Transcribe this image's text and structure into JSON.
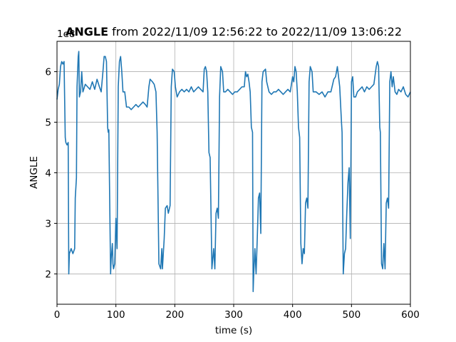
{
  "chart_data": {
    "type": "line",
    "title": {
      "bold_part": "ANGLE",
      "rest": " from 2022/11/09 12:56:22 to 2022/11/09 13:06:22"
    },
    "xlabel": "time (s)",
    "ylabel": "ANGLE",
    "y_offset_label": "1e8",
    "xlim": [
      0,
      600
    ],
    "ylim": [
      1.4,
      6.6
    ],
    "x_ticks": [
      0,
      100,
      200,
      300,
      400,
      500,
      600
    ],
    "y_ticks": [
      2,
      3,
      4,
      5,
      6
    ],
    "grid": true,
    "series": [
      {
        "color": "#1f77b4",
        "points": [
          [
            0,
            5.45
          ],
          [
            2,
            5.65
          ],
          [
            4,
            5.75
          ],
          [
            6,
            6.1
          ],
          [
            8,
            6.2
          ],
          [
            10,
            6.15
          ],
          [
            12,
            6.2
          ],
          [
            14,
            4.7
          ],
          [
            15,
            4.6
          ],
          [
            17,
            4.55
          ],
          [
            19,
            4.6
          ],
          [
            20,
            2.0
          ],
          [
            21,
            2.4
          ],
          [
            24,
            2.5
          ],
          [
            27,
            2.4
          ],
          [
            30,
            2.5
          ],
          [
            31,
            3.5
          ],
          [
            33,
            3.9
          ],
          [
            34,
            5.7
          ],
          [
            36,
            6.3
          ],
          [
            37,
            6.4
          ],
          [
            38,
            5.5
          ],
          [
            40,
            5.6
          ],
          [
            42,
            6.0
          ],
          [
            44,
            5.6
          ],
          [
            48,
            5.75
          ],
          [
            52,
            5.7
          ],
          [
            56,
            5.65
          ],
          [
            60,
            5.8
          ],
          [
            64,
            5.65
          ],
          [
            68,
            5.85
          ],
          [
            72,
            5.7
          ],
          [
            75,
            5.6
          ],
          [
            78,
            6.0
          ],
          [
            80,
            6.3
          ],
          [
            82,
            6.3
          ],
          [
            84,
            6.2
          ],
          [
            86,
            4.9
          ],
          [
            87,
            4.8
          ],
          [
            88,
            4.85
          ],
          [
            91,
            2.0
          ],
          [
            92,
            2.3
          ],
          [
            94,
            2.6
          ],
          [
            95,
            2.2
          ],
          [
            96,
            2.1
          ],
          [
            98,
            2.2
          ],
          [
            100,
            3.1
          ],
          [
            102,
            2.5
          ],
          [
            104,
            5.7
          ],
          [
            106,
            6.2
          ],
          [
            108,
            6.3
          ],
          [
            110,
            6.0
          ],
          [
            112,
            5.6
          ],
          [
            115,
            5.6
          ],
          [
            118,
            5.3
          ],
          [
            122,
            5.3
          ],
          [
            126,
            5.25
          ],
          [
            130,
            5.3
          ],
          [
            134,
            5.35
          ],
          [
            138,
            5.3
          ],
          [
            142,
            5.35
          ],
          [
            146,
            5.4
          ],
          [
            150,
            5.35
          ],
          [
            153,
            5.3
          ],
          [
            156,
            5.7
          ],
          [
            158,
            5.85
          ],
          [
            162,
            5.8
          ],
          [
            165,
            5.75
          ],
          [
            168,
            5.6
          ],
          [
            170,
            4.8
          ],
          [
            173,
            2.2
          ],
          [
            176,
            2.1
          ],
          [
            178,
            2.5
          ],
          [
            179,
            2.1
          ],
          [
            182,
            2.7
          ],
          [
            184,
            3.3
          ],
          [
            187,
            3.35
          ],
          [
            189,
            3.2
          ],
          [
            192,
            3.35
          ],
          [
            194,
            5.7
          ],
          [
            196,
            6.05
          ],
          [
            199,
            6.0
          ],
          [
            201,
            5.7
          ],
          [
            204,
            5.5
          ],
          [
            208,
            5.6
          ],
          [
            212,
            5.65
          ],
          [
            216,
            5.6
          ],
          [
            220,
            5.65
          ],
          [
            224,
            5.6
          ],
          [
            228,
            5.7
          ],
          [
            232,
            5.6
          ],
          [
            236,
            5.65
          ],
          [
            240,
            5.7
          ],
          [
            244,
            5.65
          ],
          [
            248,
            5.6
          ],
          [
            250,
            6.05
          ],
          [
            252,
            6.1
          ],
          [
            254,
            6.0
          ],
          [
            256,
            5.6
          ],
          [
            258,
            4.4
          ],
          [
            260,
            4.3
          ],
          [
            263,
            2.1
          ],
          [
            266,
            2.5
          ],
          [
            268,
            2.1
          ],
          [
            270,
            3.2
          ],
          [
            272,
            3.3
          ],
          [
            274,
            3.1
          ],
          [
            276,
            5.5
          ],
          [
            278,
            6.1
          ],
          [
            281,
            6.0
          ],
          [
            283,
            5.6
          ],
          [
            286,
            5.6
          ],
          [
            290,
            5.65
          ],
          [
            294,
            5.6
          ],
          [
            298,
            5.55
          ],
          [
            302,
            5.6
          ],
          [
            306,
            5.6
          ],
          [
            310,
            5.65
          ],
          [
            314,
            5.7
          ],
          [
            318,
            5.7
          ],
          [
            320,
            6.0
          ],
          [
            322,
            5.9
          ],
          [
            324,
            5.95
          ],
          [
            326,
            5.8
          ],
          [
            328,
            5.6
          ],
          [
            330,
            4.9
          ],
          [
            332,
            4.8
          ],
          [
            333,
            1.65
          ],
          [
            334,
            2.0
          ],
          [
            336,
            2.5
          ],
          [
            338,
            2.0
          ],
          [
            340,
            2.7
          ],
          [
            342,
            3.5
          ],
          [
            344,
            3.6
          ],
          [
            346,
            2.8
          ],
          [
            348,
            5.8
          ],
          [
            350,
            6.0
          ],
          [
            354,
            6.05
          ],
          [
            356,
            5.8
          ],
          [
            360,
            5.6
          ],
          [
            364,
            5.55
          ],
          [
            368,
            5.6
          ],
          [
            372,
            5.6
          ],
          [
            376,
            5.65
          ],
          [
            380,
            5.6
          ],
          [
            384,
            5.55
          ],
          [
            388,
            5.6
          ],
          [
            392,
            5.65
          ],
          [
            396,
            5.6
          ],
          [
            400,
            5.9
          ],
          [
            402,
            5.8
          ],
          [
            404,
            6.1
          ],
          [
            406,
            6.0
          ],
          [
            408,
            5.6
          ],
          [
            410,
            4.9
          ],
          [
            412,
            4.7
          ],
          [
            414,
            2.6
          ],
          [
            416,
            2.2
          ],
          [
            418,
            2.5
          ],
          [
            420,
            2.4
          ],
          [
            422,
            3.4
          ],
          [
            424,
            3.5
          ],
          [
            426,
            3.3
          ],
          [
            428,
            5.8
          ],
          [
            430,
            6.1
          ],
          [
            433,
            6.0
          ],
          [
            435,
            5.6
          ],
          [
            440,
            5.6
          ],
          [
            445,
            5.55
          ],
          [
            450,
            5.6
          ],
          [
            455,
            5.5
          ],
          [
            460,
            5.6
          ],
          [
            465,
            5.6
          ],
          [
            470,
            5.85
          ],
          [
            473,
            5.9
          ],
          [
            476,
            6.1
          ],
          [
            478,
            5.9
          ],
          [
            480,
            5.7
          ],
          [
            483,
            5.0
          ],
          [
            484,
            4.8
          ],
          [
            486,
            2.0
          ],
          [
            488,
            2.4
          ],
          [
            490,
            2.5
          ],
          [
            492,
            3.2
          ],
          [
            494,
            3.8
          ],
          [
            496,
            4.1
          ],
          [
            498,
            2.7
          ],
          [
            500,
            5.8
          ],
          [
            502,
            5.9
          ],
          [
            504,
            5.5
          ],
          [
            507,
            5.5
          ],
          [
            510,
            5.6
          ],
          [
            514,
            5.65
          ],
          [
            518,
            5.7
          ],
          [
            522,
            5.6
          ],
          [
            526,
            5.7
          ],
          [
            530,
            5.65
          ],
          [
            534,
            5.7
          ],
          [
            538,
            5.75
          ],
          [
            542,
            6.1
          ],
          [
            544,
            6.2
          ],
          [
            546,
            6.1
          ],
          [
            548,
            4.9
          ],
          [
            549,
            4.8
          ],
          [
            551,
            2.2
          ],
          [
            553,
            2.1
          ],
          [
            555,
            2.6
          ],
          [
            557,
            2.1
          ],
          [
            559,
            3.4
          ],
          [
            561,
            3.5
          ],
          [
            563,
            3.3
          ],
          [
            565,
            5.8
          ],
          [
            567,
            6.0
          ],
          [
            569,
            5.7
          ],
          [
            571,
            5.9
          ],
          [
            574,
            5.6
          ],
          [
            577,
            5.55
          ],
          [
            580,
            5.65
          ],
          [
            584,
            5.6
          ],
          [
            588,
            5.7
          ],
          [
            592,
            5.55
          ],
          [
            596,
            5.5
          ],
          [
            600,
            5.6
          ]
        ]
      }
    ]
  }
}
